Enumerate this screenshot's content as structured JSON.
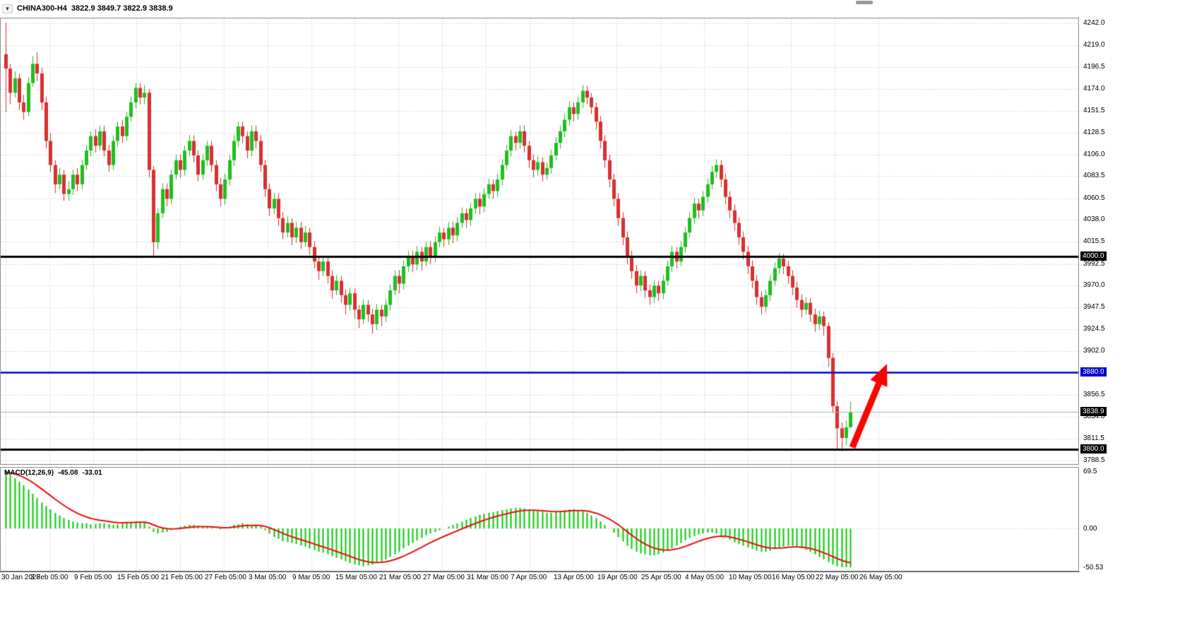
{
  "header": {
    "symbol": "CHINA300-H4",
    "ohlc": "3822.9 3849.7 3822.9 3838.9"
  },
  "indicator": {
    "name": "MACD(12,26,9)",
    "main_value": "-45.08",
    "signal_value": "-33.01"
  },
  "chart_data": {
    "type": "candlestick",
    "title": "CHINA300-H4",
    "timeframe": "H4",
    "x_axis": {
      "labels": [
        "30 Jan 2023",
        "3 Feb 05:00",
        "9 Feb 05:00",
        "15 Feb 05:00",
        "21 Feb 05:00",
        "27 Feb 05:00",
        "3 Mar 05:00",
        "9 Mar 05:00",
        "15 Mar 05:00",
        "21 Mar 05:00",
        "27 Mar 05:00",
        "31 Mar 05:00",
        "7 Apr 05:00",
        "13 Apr 05:00",
        "19 Apr 05:00",
        "25 Apr 05:00",
        "4 May 05:00",
        "10 May 05:00",
        "16 May 05:00",
        "22 May 05:00",
        "26 May 05:00"
      ]
    },
    "y_axis": {
      "ticks": [
        "4242.0",
        "4219.0",
        "4196.5",
        "4174.0",
        "4151.5",
        "4128.5",
        "4106.0",
        "4083.5",
        "4060.5",
        "4038.0",
        "4015.5",
        "3992.5",
        "3970.0",
        "3947.5",
        "3924.5",
        "3902.0",
        "3856.5",
        "3834.0",
        "3811.5",
        "3788.5"
      ],
      "ylim": [
        3788.5,
        4242.0
      ]
    },
    "candles": [
      [
        4210,
        4242,
        4150,
        4195
      ],
      [
        4195,
        4200,
        4158,
        4170
      ],
      [
        4170,
        4192,
        4165,
        4185
      ],
      [
        4185,
        4190,
        4152,
        4160
      ],
      [
        4160,
        4168,
        4142,
        4150
      ],
      [
        4150,
        4186,
        4146,
        4180
      ],
      [
        4180,
        4208,
        4176,
        4200
      ],
      [
        4200,
        4212,
        4182,
        4190
      ],
      [
        4190,
        4196,
        4152,
        4160
      ],
      [
        4160,
        4166,
        4112,
        4120
      ],
      [
        4120,
        4128,
        4088,
        4095
      ],
      [
        4095,
        4100,
        4066,
        4075
      ],
      [
        4075,
        4092,
        4070,
        4085
      ],
      [
        4085,
        4090,
        4058,
        4065
      ],
      [
        4065,
        4078,
        4058,
        4070
      ],
      [
        4070,
        4090,
        4064,
        4085
      ],
      [
        4085,
        4092,
        4068,
        4075
      ],
      [
        4075,
        4100,
        4070,
        4095
      ],
      [
        4095,
        4116,
        4090,
        4110
      ],
      [
        4110,
        4130,
        4104,
        4125
      ],
      [
        4125,
        4132,
        4108,
        4115
      ],
      [
        4115,
        4136,
        4110,
        4130
      ],
      [
        4130,
        4136,
        4104,
        4110
      ],
      [
        4110,
        4116,
        4088,
        4095
      ],
      [
        4095,
        4126,
        4090,
        4120
      ],
      [
        4120,
        4140,
        4114,
        4135
      ],
      [
        4135,
        4142,
        4118,
        4125
      ],
      [
        4125,
        4150,
        4120,
        4145
      ],
      [
        4145,
        4166,
        4140,
        4160
      ],
      [
        4160,
        4180,
        4154,
        4175
      ],
      [
        4175,
        4180,
        4158,
        4165
      ],
      [
        4165,
        4178,
        4158,
        4170
      ],
      [
        4170,
        4174,
        4082,
        4090
      ],
      [
        4090,
        4094,
        4000,
        4015
      ],
      [
        4015,
        4050,
        4008,
        4045
      ],
      [
        4045,
        4076,
        4040,
        4070
      ],
      [
        4070,
        4076,
        4052,
        4060
      ],
      [
        4060,
        4090,
        4054,
        4085
      ],
      [
        4085,
        4106,
        4080,
        4100
      ],
      [
        4100,
        4106,
        4082,
        4090
      ],
      [
        4090,
        4115,
        4084,
        4110
      ],
      [
        4110,
        4126,
        4104,
        4120
      ],
      [
        4120,
        4126,
        4098,
        4105
      ],
      [
        4105,
        4110,
        4078,
        4085
      ],
      [
        4085,
        4106,
        4080,
        4100
      ],
      [
        4100,
        4120,
        4094,
        4115
      ],
      [
        4115,
        4120,
        4088,
        4095
      ],
      [
        4095,
        4100,
        4068,
        4075
      ],
      [
        4075,
        4082,
        4052,
        4060
      ],
      [
        4060,
        4086,
        4054,
        4080
      ],
      [
        4080,
        4106,
        4074,
        4100
      ],
      [
        4100,
        4126,
        4094,
        4120
      ],
      [
        4120,
        4140,
        4114,
        4135
      ],
      [
        4135,
        4140,
        4118,
        4125
      ],
      [
        4125,
        4130,
        4102,
        4110
      ],
      [
        4110,
        4136,
        4104,
        4130
      ],
      [
        4130,
        4136,
        4112,
        4120
      ],
      [
        4120,
        4126,
        4088,
        4095
      ],
      [
        4095,
        4100,
        4062,
        4070
      ],
      [
        4070,
        4076,
        4042,
        4050
      ],
      [
        4050,
        4066,
        4044,
        4060
      ],
      [
        4060,
        4066,
        4032,
        4040
      ],
      [
        4040,
        4046,
        4018,
        4025
      ],
      [
        4025,
        4042,
        4020,
        4035
      ],
      [
        4035,
        4040,
        4012,
        4020
      ],
      [
        4020,
        4036,
        4014,
        4030
      ],
      [
        4030,
        4036,
        4008,
        4015
      ],
      [
        4015,
        4032,
        4010,
        4025
      ],
      [
        4025,
        4030,
        4002,
        4010
      ],
      [
        4010,
        4016,
        3988,
        3995
      ],
      [
        3995,
        4000,
        3976,
        3985
      ],
      [
        3985,
        4001,
        3980,
        3995
      ],
      [
        3995,
        4000,
        3972,
        3980
      ],
      [
        3980,
        3986,
        3956,
        3965
      ],
      [
        3965,
        3981,
        3960,
        3975
      ],
      [
        3975,
        3980,
        3952,
        3960
      ],
      [
        3960,
        3966,
        3940,
        3950
      ],
      [
        3950,
        3968,
        3944,
        3962
      ],
      [
        3962,
        3967,
        3936,
        3945
      ],
      [
        3945,
        3950,
        3926,
        3935
      ],
      [
        3935,
        3956,
        3930,
        3950
      ],
      [
        3950,
        3955,
        3932,
        3940
      ],
      [
        3940,
        3946,
        3920,
        3930
      ],
      [
        3930,
        3951,
        3924,
        3945
      ],
      [
        3945,
        3950,
        3928,
        3938
      ],
      [
        3938,
        3956,
        3932,
        3950
      ],
      [
        3950,
        3971,
        3944,
        3965
      ],
      [
        3965,
        3986,
        3960,
        3980
      ],
      [
        3980,
        3986,
        3962,
        3972
      ],
      [
        3972,
        3996,
        3966,
        3990
      ],
      [
        3990,
        4006,
        3984,
        4000
      ],
      [
        4000,
        4006,
        3984,
        3992
      ],
      [
        3992,
        4011,
        3986,
        4005
      ],
      [
        4005,
        4010,
        3986,
        3995
      ],
      [
        3995,
        4016,
        3990,
        4010
      ],
      [
        4010,
        4016,
        3992,
        4000
      ],
      [
        4000,
        4021,
        3994,
        4015
      ],
      [
        4015,
        4031,
        4010,
        4025
      ],
      [
        4025,
        4030,
        4010,
        4018
      ],
      [
        4018,
        4036,
        4012,
        4030
      ],
      [
        4030,
        4036,
        4014,
        4022
      ],
      [
        4022,
        4041,
        4016,
        4035
      ],
      [
        4035,
        4051,
        4030,
        4045
      ],
      [
        4045,
        4050,
        4030,
        4038
      ],
      [
        4038,
        4056,
        4032,
        4050
      ],
      [
        4050,
        4066,
        4044,
        4060
      ],
      [
        4060,
        4066,
        4044,
        4052
      ],
      [
        4052,
        4071,
        4046,
        4065
      ],
      [
        4065,
        4081,
        4060,
        4075
      ],
      [
        4075,
        4080,
        4060,
        4068
      ],
      [
        4068,
        4086,
        4062,
        4080
      ],
      [
        4080,
        4101,
        4074,
        4095
      ],
      [
        4095,
        4116,
        4090,
        4110
      ],
      [
        4110,
        4131,
        4104,
        4125
      ],
      [
        4125,
        4130,
        4110,
        4118
      ],
      [
        4118,
        4136,
        4112,
        4130
      ],
      [
        4130,
        4136,
        4108,
        4115
      ],
      [
        4115,
        4120,
        4092,
        4100
      ],
      [
        4100,
        4106,
        4082,
        4090
      ],
      [
        4090,
        4104,
        4084,
        4098
      ],
      [
        4098,
        4103,
        4078,
        4085
      ],
      [
        4085,
        4098,
        4080,
        4092
      ],
      [
        4092,
        4111,
        4086,
        4105
      ],
      [
        4105,
        4124,
        4100,
        4118
      ],
      [
        4118,
        4136,
        4112,
        4130
      ],
      [
        4130,
        4148,
        4124,
        4142
      ],
      [
        4142,
        4161,
        4136,
        4155
      ],
      [
        4155,
        4160,
        4140,
        4148
      ],
      [
        4148,
        4166,
        4142,
        4160
      ],
      [
        4160,
        4178,
        4154,
        4172
      ],
      [
        4172,
        4177,
        4158,
        4165
      ],
      [
        4165,
        4170,
        4148,
        4155
      ],
      [
        4155,
        4160,
        4132,
        4140
      ],
      [
        4140,
        4146,
        4112,
        4120
      ],
      [
        4120,
        4126,
        4092,
        4100
      ],
      [
        4100,
        4106,
        4072,
        4080
      ],
      [
        4080,
        4086,
        4052,
        4060
      ],
      [
        4060,
        4066,
        4032,
        4040
      ],
      [
        4040,
        4046,
        4012,
        4020
      ],
      [
        4020,
        4026,
        3992,
        4000
      ],
      [
        4000,
        4006,
        3977,
        3985
      ],
      [
        3985,
        3991,
        3962,
        3970
      ],
      [
        3970,
        3986,
        3964,
        3980
      ],
      [
        3980,
        3985,
        3957,
        3965
      ],
      [
        3965,
        3971,
        3950,
        3958
      ],
      [
        3958,
        3976,
        3952,
        3970
      ],
      [
        3970,
        3975,
        3954,
        3962
      ],
      [
        3962,
        3981,
        3956,
        3975
      ],
      [
        3975,
        3996,
        3970,
        3990
      ],
      [
        3990,
        4011,
        3984,
        4005
      ],
      [
        4005,
        4010,
        3988,
        3995
      ],
      [
        3995,
        4016,
        3990,
        4010
      ],
      [
        4010,
        4031,
        4004,
        4025
      ],
      [
        4025,
        4046,
        4020,
        4040
      ],
      [
        4040,
        4061,
        4034,
        4055
      ],
      [
        4055,
        4060,
        4040,
        4048
      ],
      [
        4048,
        4068,
        4042,
        4062
      ],
      [
        4062,
        4081,
        4056,
        4075
      ],
      [
        4075,
        4094,
        4070,
        4088
      ],
      [
        4088,
        4101,
        4082,
        4095
      ],
      [
        4095,
        4100,
        4072,
        4080
      ],
      [
        4080,
        4086,
        4054,
        4062
      ],
      [
        4062,
        4068,
        4040,
        4048
      ],
      [
        4048,
        4054,
        4027,
        4035
      ],
      [
        4035,
        4041,
        4012,
        4020
      ],
      [
        4020,
        4026,
        3997,
        4005
      ],
      [
        4005,
        4011,
        3982,
        3990
      ],
      [
        3990,
        3996,
        3967,
        3975
      ],
      [
        3975,
        3981,
        3950,
        3958
      ],
      [
        3958,
        3964,
        3940,
        3948
      ],
      [
        3948,
        3966,
        3942,
        3960
      ],
      [
        3960,
        3981,
        3954,
        3975
      ],
      [
        3975,
        3994,
        3970,
        3988
      ],
      [
        3988,
        4004,
        3982,
        3998
      ],
      [
        3998,
        4003,
        3982,
        3990
      ],
      [
        3990,
        3996,
        3972,
        3980
      ],
      [
        3980,
        3986,
        3960,
        3968
      ],
      [
        3968,
        3974,
        3947,
        3955
      ],
      [
        3955,
        3961,
        3937,
        3945
      ],
      [
        3945,
        3958,
        3940,
        3952
      ],
      [
        3952,
        3957,
        3932,
        3940
      ],
      [
        3940,
        3946,
        3922,
        3930
      ],
      [
        3930,
        3944,
        3924,
        3938
      ],
      [
        3938,
        3943,
        3918,
        3928
      ],
      [
        3928,
        3932,
        3886,
        3895
      ],
      [
        3895,
        3900,
        3838,
        3845
      ],
      [
        3845,
        3850,
        3800,
        3822
      ],
      [
        3822,
        3828,
        3798,
        3812
      ],
      [
        3812,
        3830,
        3804,
        3822.9
      ],
      [
        3822.9,
        3849.7,
        3822.9,
        3838.9
      ]
    ],
    "hlines": [
      {
        "value": 4000.0,
        "label": "4000.0",
        "color": "#000000",
        "width": 3
      },
      {
        "value": 3880.0,
        "label": "3880.0",
        "color": "#0000C8",
        "width": 2.5
      },
      {
        "value": 3800.0,
        "label": "3800.0",
        "color": "#000000",
        "width": 3
      }
    ],
    "current_price": {
      "value": 3838.9,
      "label": "3838.9",
      "badge_color": "#000000"
    },
    "style": {
      "bull_color": "#1FBF1F",
      "bear_color": "#D93030",
      "background": "#FFFFFF",
      "grid_color": "#C9C9C9"
    },
    "macd": {
      "name": "MACD(12,26,9)",
      "params": [
        12,
        26,
        9
      ],
      "main_value": -45.08,
      "signal_value": -33.01,
      "y_ticks": [
        "69.5",
        "0.00",
        "-50.53"
      ],
      "ylim": [
        -50.53,
        69.5
      ],
      "histogram_color": "#00CC00",
      "signal_color": "#E81010",
      "values": [
        65,
        62,
        58,
        54,
        50,
        45,
        40,
        35,
        30,
        26,
        22,
        18,
        15,
        12,
        10,
        8,
        7,
        6,
        6,
        5,
        5,
        6,
        6,
        5,
        4,
        5,
        6,
        7,
        7,
        8,
        8,
        7,
        2,
        -4,
        -6,
        -5,
        -4,
        -2,
        0,
        2,
        3,
        4,
        4,
        3,
        2,
        2,
        1,
        0,
        -1,
        0,
        2,
        4,
        5,
        6,
        5,
        4,
        4,
        2,
        -2,
        -6,
        -10,
        -12,
        -15,
        -16,
        -17,
        -18,
        -20,
        -21,
        -23,
        -25,
        -27,
        -28,
        -30,
        -32,
        -34,
        -36,
        -38,
        -40,
        -42,
        -43,
        -44,
        -43,
        -42,
        -40,
        -38,
        -36,
        -33,
        -30,
        -27,
        -23,
        -20,
        -17,
        -14,
        -11,
        -8,
        -6,
        -4,
        -2,
        0,
        2,
        4,
        6,
        8,
        10,
        12,
        14,
        16,
        17,
        18,
        19,
        20,
        21,
        22,
        23,
        24,
        24,
        23,
        22,
        21,
        20,
        19,
        18,
        18,
        19,
        20,
        21,
        22,
        22,
        21,
        20,
        18,
        15,
        12,
        8,
        4,
        0,
        -5,
        -10,
        -15,
        -20,
        -24,
        -27,
        -29,
        -30,
        -31,
        -31,
        -30,
        -28,
        -26,
        -23,
        -20,
        -17,
        -14,
        -11,
        -9,
        -7,
        -6,
        -5,
        -5,
        -6,
        -8,
        -10,
        -13,
        -16,
        -18,
        -20,
        -22,
        -24,
        -26,
        -27,
        -27,
        -26,
        -24,
        -22,
        -21,
        -20,
        -20,
        -21,
        -23,
        -25,
        -27,
        -30,
        -33,
        -36,
        -39,
        -42,
        -44,
        -45,
        -45,
        -45.08
      ]
    },
    "annotation_arrow": {
      "shape": "arrow-up",
      "color": "#FF0000",
      "from_price": 3800,
      "to_price": 3880
    }
  }
}
